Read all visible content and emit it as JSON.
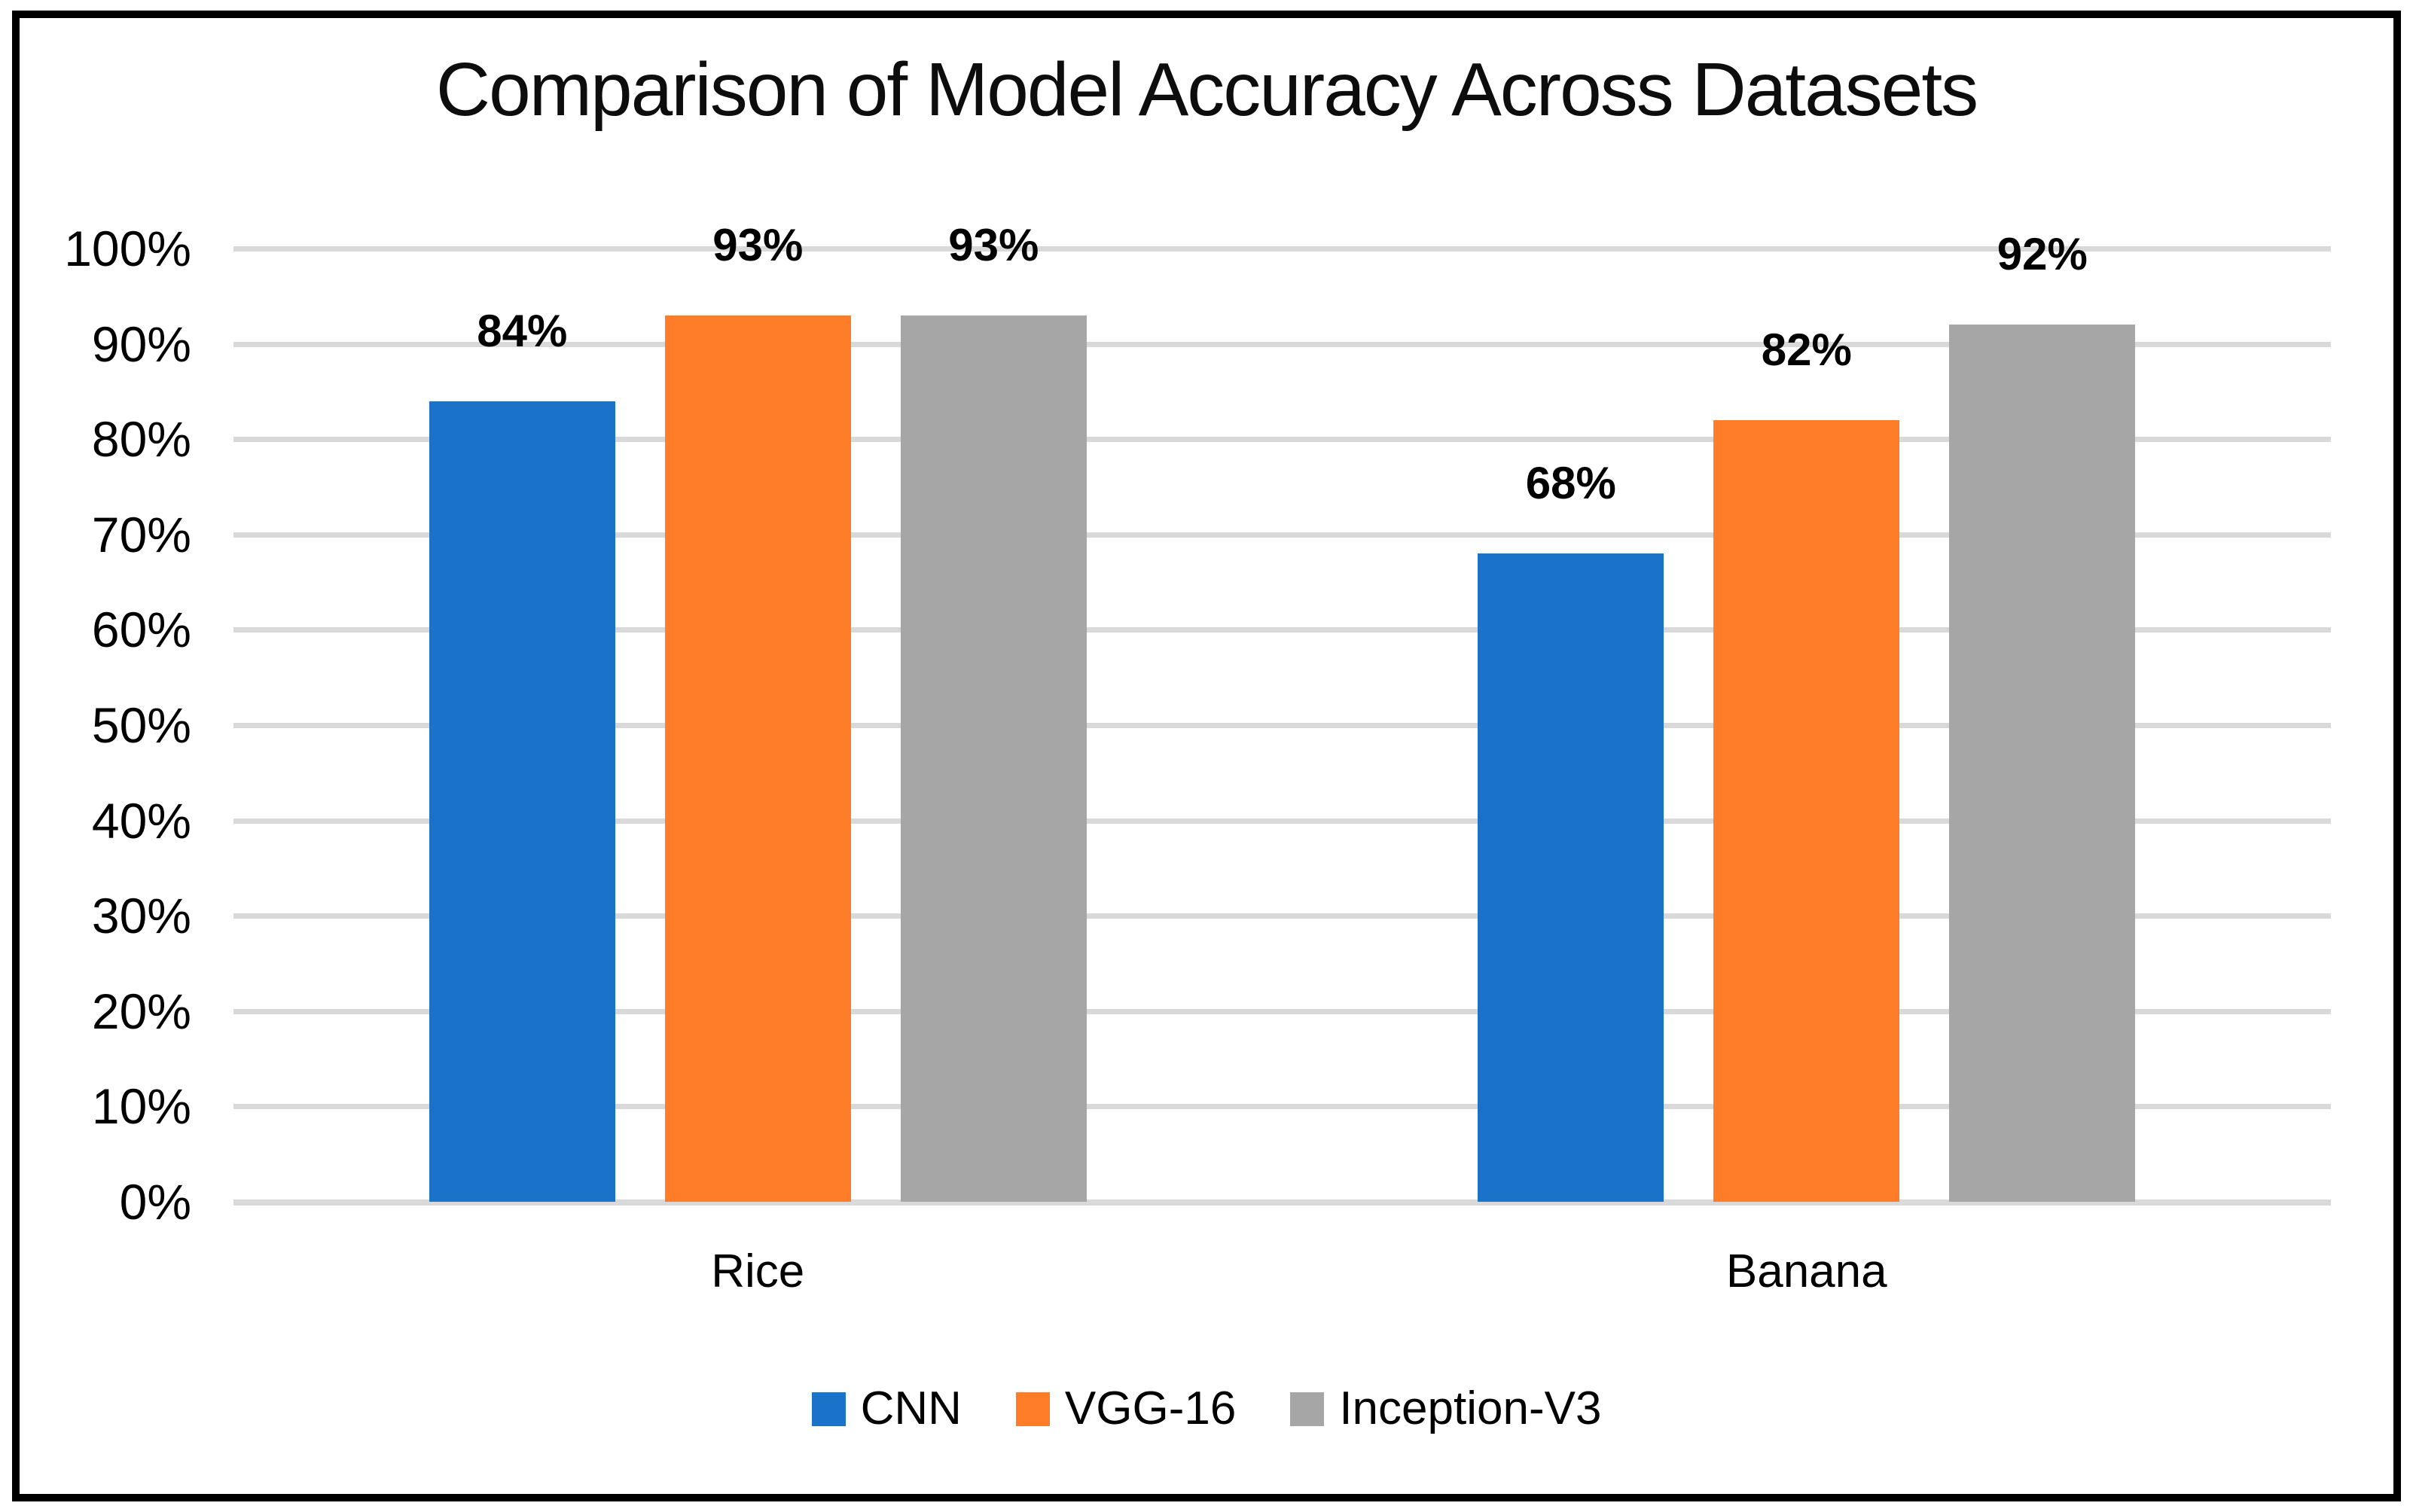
{
  "chart_data": {
    "type": "bar",
    "title": "Comparison of Model Accuracy Across Datasets",
    "categories": [
      "Rice",
      "Banana"
    ],
    "series": [
      {
        "name": "CNN",
        "color": "#1B73C9",
        "values": [
          84,
          68
        ],
        "labels": [
          "84%",
          "68%"
        ]
      },
      {
        "name": "VGG-16",
        "color": "#FF7D28",
        "values": [
          93,
          82
        ],
        "labels": [
          "93%",
          "82%"
        ]
      },
      {
        "name": "Inception-V3",
        "color": "#A6A6A6",
        "values": [
          93,
          92
        ],
        "labels": [
          "93%",
          "92%"
        ]
      }
    ],
    "ylim": [
      0,
      100
    ],
    "yticks": [
      "0%",
      "10%",
      "20%",
      "30%",
      "40%",
      "50%",
      "60%",
      "70%",
      "80%",
      "90%",
      "100%"
    ],
    "ytick_step": 10,
    "grid": true,
    "gridline_color": "#D9D9D9",
    "legend_position": "bottom-center",
    "xlabel": "",
    "ylabel": "",
    "value_label_color": "#000000",
    "tick_label_color": "#000000",
    "frame_border_color": "#000000"
  }
}
